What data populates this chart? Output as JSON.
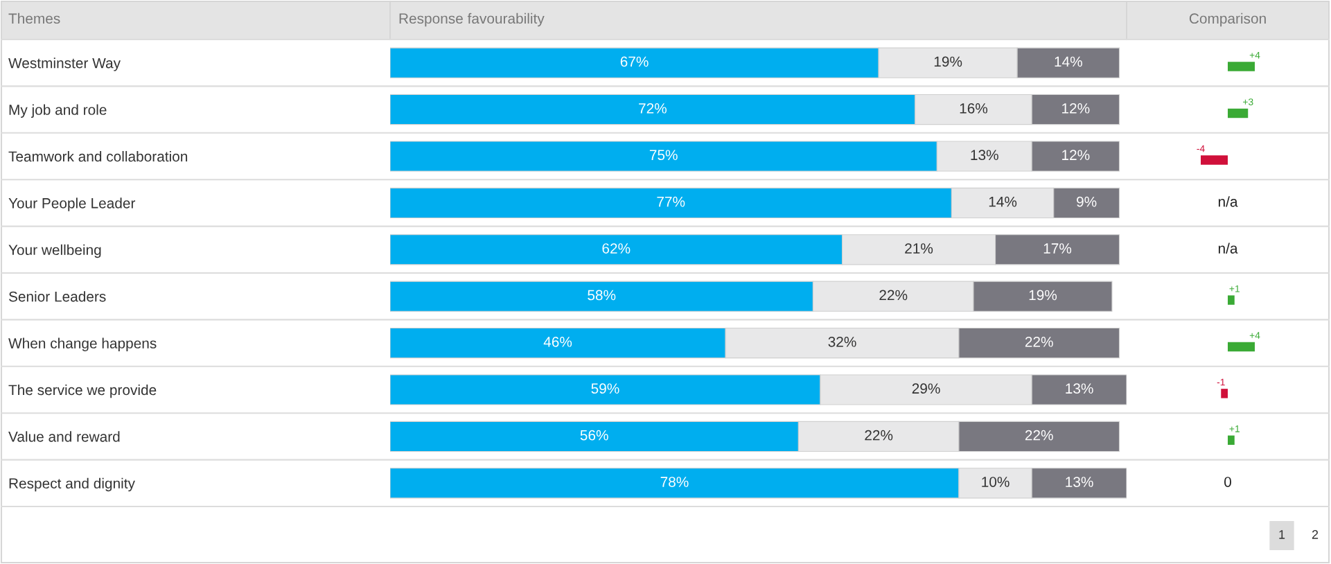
{
  "chart_data": [
    {
      "type": "bar",
      "orientation": "horizontal",
      "stacked": true,
      "title": "Response favourability",
      "ylabel": "Themes",
      "categories": [
        "Westminster Way",
        "My job and role",
        "Teamwork and collaboration",
        "Your People Leader",
        "Your wellbeing",
        "Senior Leaders",
        "When change happens",
        "The service we provide",
        "Value and reward",
        "Respect and dignity"
      ],
      "series": [
        {
          "color": "#00aeef",
          "values": [
            67,
            72,
            75,
            77,
            62,
            58,
            46,
            59,
            56,
            78
          ],
          "value_labels": [
            "67%",
            "72%",
            "75%",
            "77%",
            "62%",
            "58%",
            "46%",
            "59%",
            "56%",
            "78%"
          ]
        },
        {
          "color": "#e8e8e9",
          "values": [
            19,
            16,
            13,
            14,
            21,
            22,
            32,
            29,
            22,
            10
          ],
          "value_labels": [
            "19%",
            "16%",
            "13%",
            "14%",
            "21%",
            "22%",
            "32%",
            "29%",
            "22%",
            "10%"
          ]
        },
        {
          "color": "#797880",
          "values": [
            14,
            12,
            12,
            9,
            17,
            19,
            22,
            13,
            22,
            13
          ],
          "value_labels": [
            "14%",
            "12%",
            "12%",
            "9%",
            "17%",
            "19%",
            "22%",
            "13%",
            "22%",
            "13%"
          ]
        }
      ],
      "tick_labels": "y"
    },
    {
      "type": "bar",
      "orientation": "horizontal",
      "title": "Comparison",
      "categories": [
        null,
        null,
        null,
        null,
        null,
        null,
        null,
        null,
        null,
        null
      ],
      "values": [
        4,
        3,
        -4,
        null,
        null,
        1,
        4,
        -1,
        1,
        0
      ],
      "value_labels": [
        "+4",
        "+3",
        "-4",
        "n/a",
        "n/a",
        "+1",
        "+4",
        "-1",
        "+1",
        "0"
      ],
      "colors": [
        "#3aaa35",
        "#3aaa35",
        "#d0103a",
        null,
        null,
        "#3aaa35",
        "#3aaa35",
        "#d0103a",
        "#3aaa35",
        null
      ],
      "tick_labels": false,
      "annotations": [
        "1",
        "2"
      ]
    }
  ]
}
